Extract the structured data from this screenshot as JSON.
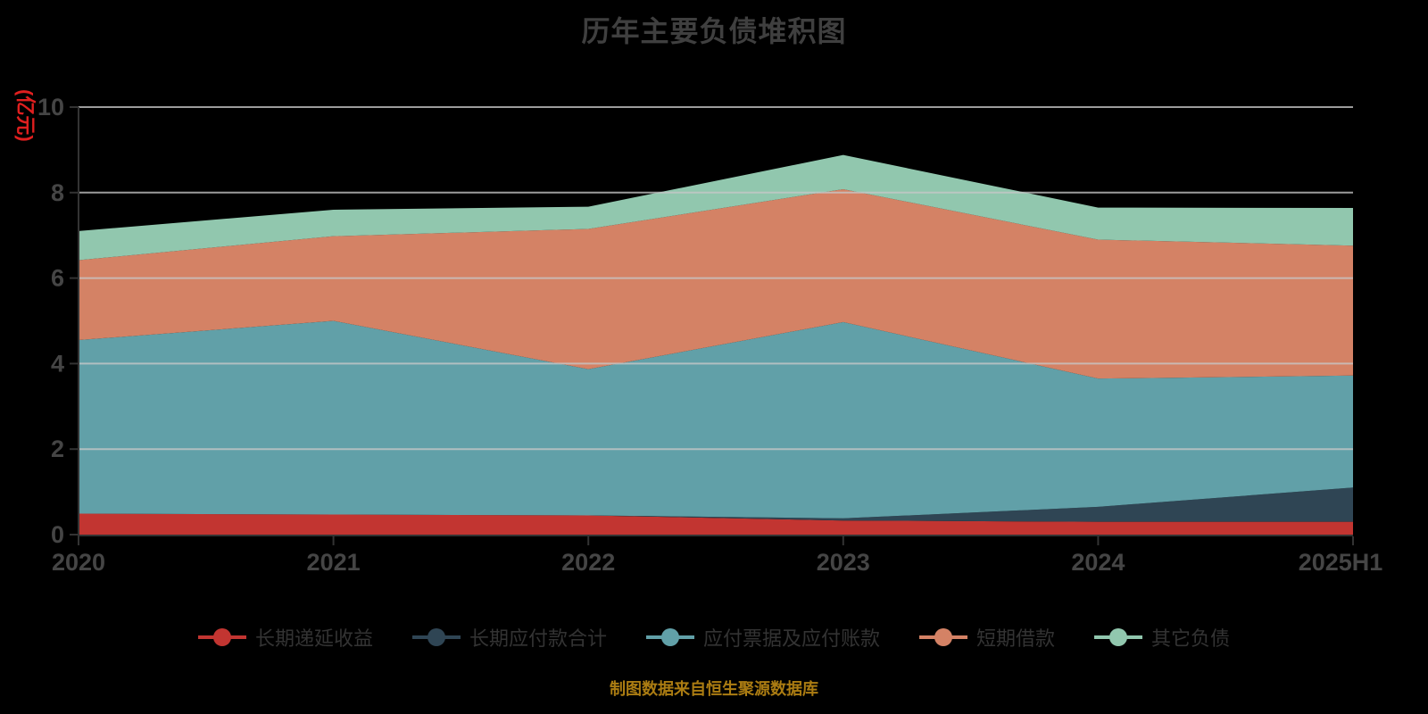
{
  "title": "历年主要负债堆积图",
  "source_note": "制图数据来自恒生聚源数据库",
  "colors": {
    "background": "#000000",
    "title_text": "#3f3f3f",
    "axis_line": "#333333",
    "axis_label": "#454545",
    "gridline": "#c8c8c8",
    "y_unit_label": "#e01f1f",
    "legend_text": "#333333",
    "source_note_text": "#ab7c12"
  },
  "chart_data": {
    "type": "area",
    "stacked": true,
    "title": "历年主要负债堆积图",
    "ylabel": "(亿元)",
    "xlabel": "",
    "ylim": [
      0,
      10
    ],
    "yticks": [
      0,
      2,
      4,
      6,
      8,
      10
    ],
    "grid": "horizontal",
    "legend_position": "bottom",
    "categories": [
      "2020",
      "2021",
      "2022",
      "2023",
      "2024",
      "2025H1"
    ],
    "series": [
      {
        "name": "长期递延收益",
        "color": "#c23531",
        "values": [
          0.49,
          0.47,
          0.45,
          0.33,
          0.3,
          0.3
        ]
      },
      {
        "name": "长期应付款合计",
        "color": "#2f4554",
        "values": [
          0.0,
          0.0,
          0.0,
          0.05,
          0.35,
          0.8
        ]
      },
      {
        "name": "应付票据及应付账款",
        "color": "#61a0a8",
        "values": [
          4.06,
          4.53,
          3.42,
          4.59,
          3.0,
          2.62
        ]
      },
      {
        "name": "短期借款",
        "color": "#d48265",
        "values": [
          1.87,
          1.98,
          3.28,
          3.11,
          3.25,
          3.04
        ]
      },
      {
        "name": "其它负债",
        "color": "#91c7ae",
        "values": [
          0.68,
          0.62,
          0.52,
          0.8,
          0.75,
          0.88
        ]
      }
    ],
    "cumulative_tops": {
      "2020": [
        0.49,
        0.49,
        4.55,
        6.42,
        7.1
      ],
      "2021": [
        0.47,
        0.47,
        5.0,
        6.98,
        7.6
      ],
      "2022": [
        0.45,
        0.45,
        3.87,
        7.15,
        7.67
      ],
      "2023": [
        0.33,
        0.38,
        4.97,
        8.08,
        8.88
      ],
      "2024": [
        0.3,
        0.65,
        3.65,
        6.9,
        7.65
      ],
      "2025H1": [
        0.3,
        1.1,
        3.72,
        6.76,
        7.64
      ]
    }
  }
}
